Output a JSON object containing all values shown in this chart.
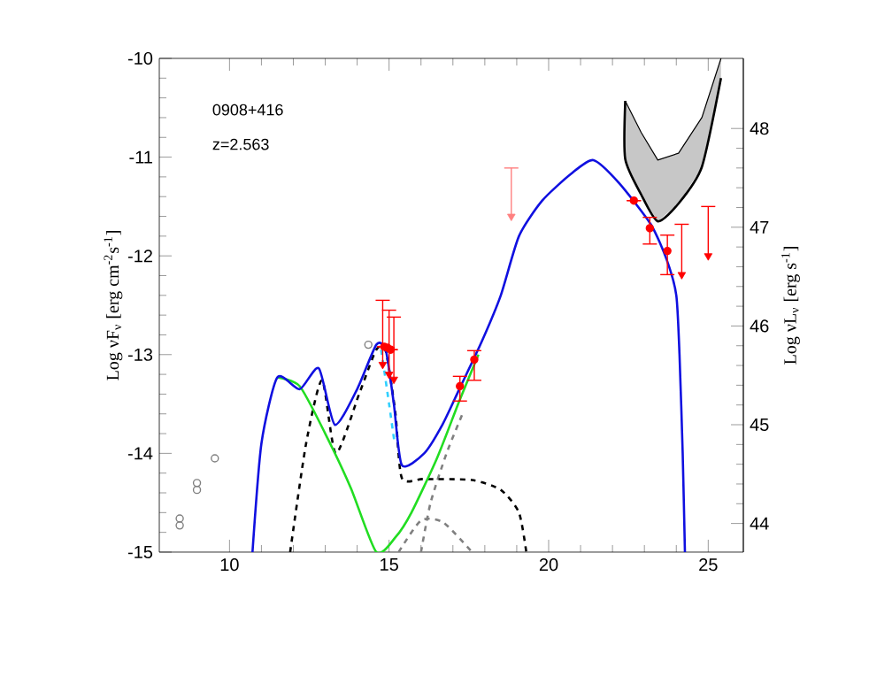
{
  "chart_data": {
    "type": "line",
    "ylabel": "Log νF$_{ν}$ [erg cm$^{-2}$s$^{-1}$]",
    "y2label": "Log νL$_{ν}$ [erg s$^{-1}$]",
    "annotations": [
      "0908+416",
      "z=2.563"
    ],
    "xlim": [
      7.8,
      26.1
    ],
    "xticks": [
      10,
      15,
      20,
      25
    ],
    "ylim": [
      -15,
      -10
    ],
    "yticks": [
      -15,
      -14,
      -13,
      -12,
      -11,
      -10
    ],
    "y2lim": [
      43.71,
      48.71
    ],
    "y2ticks": [
      44,
      45,
      46,
      47,
      48
    ],
    "series": [
      {
        "color": "#000000",
        "line_style": "solid",
        "x": [
          22.4,
          22.9,
          23.42,
          24.07,
          24.8,
          25.4
        ],
        "values": [
          -10.43,
          -10.75,
          -11.03,
          -10.96,
          -10.6,
          -10.0
        ],
        "upper": [
          -10.43,
          -10.75,
          -11.03,
          -10.96,
          -10.6,
          -10.0
        ],
        "lower": [
          -11.02,
          -11.38,
          -11.65,
          -11.47,
          -11.1,
          -10.2
        ]
      },
      {
        "color": "#000000",
        "line_style": "solid",
        "x": [
          22.4,
          22.4,
          22.9,
          23.42,
          24.07,
          24.8,
          25.4
        ],
        "values": [
          -10.43,
          -11.02,
          -11.38,
          -11.65,
          -11.47,
          -11.1,
          -10.2
        ]
      },
      {
        "color": "#808080",
        "line_style": "dashed",
        "x": [
          15.3,
          16.0,
          16.7,
          17.6
        ],
        "values": [
          -15,
          -14.68,
          -14.7,
          -15
        ]
      },
      {
        "color": "#808080",
        "line_style": "dashed",
        "x": [
          16.0,
          16.3,
          16.8,
          17.3
        ],
        "values": [
          -15,
          -14.5,
          -14.0,
          -13.6
        ]
      },
      {
        "color": "#000000",
        "line_style": "dashed",
        "x": [
          11.9,
          12.4,
          12.9,
          13.33,
          14.06,
          14.6,
          14.9,
          15.2,
          15.4,
          16.1,
          17.6,
          18.5,
          19.07,
          19.3
        ],
        "values": [
          -15,
          -13.9,
          -13.26,
          -14.0,
          -13.4,
          -12.95,
          -12.97,
          -13.6,
          -14.25,
          -14.26,
          -14.27,
          -14.37,
          -14.6,
          -15
        ]
      },
      {
        "color": "#30d0ff",
        "line_style": "dashed",
        "x": [
          14.75,
          14.83,
          15.0,
          15.17
        ],
        "values": [
          -12.95,
          -13.12,
          -13.5,
          -13.89
        ]
      },
      {
        "color": "#22dd22",
        "line_style": "solid",
        "x": [
          11.5,
          12.2,
          13.0,
          13.8,
          14.6,
          15.2,
          15.7,
          16.5,
          17.2,
          17.8
        ],
        "values": [
          -13.23,
          -13.32,
          -13.8,
          -14.35,
          -15,
          -14.85,
          -14.6,
          -14.05,
          -13.47,
          -13.0
        ]
      },
      {
        "color": "#1010e0",
        "line_style": "solid",
        "x": [
          10.72,
          11.0,
          11.5,
          12.2,
          12.8,
          13.3,
          14.0,
          14.6,
          14.9,
          15.15,
          15.4,
          16.1,
          16.67,
          17.2,
          17.9,
          18.5,
          19.07,
          19.8,
          20.7,
          21.4,
          22.2,
          23.2,
          23.7,
          24.0,
          24.1,
          24.2,
          24.27
        ],
        "values": [
          -15,
          -13.9,
          -13.23,
          -13.35,
          -13.14,
          -13.71,
          -13.35,
          -12.9,
          -12.96,
          -13.5,
          -14.12,
          -14.0,
          -13.71,
          -13.35,
          -12.87,
          -12.4,
          -11.8,
          -11.44,
          -11.17,
          -11.03,
          -11.26,
          -11.68,
          -12.04,
          -12.4,
          -13.0,
          -14.0,
          -15
        ]
      },
      {
        "type": "scatter",
        "color": "#808080",
        "marker": "circle",
        "x": [
          8.44,
          8.44,
          8.98,
          8.98,
          9.54,
          14.35
        ],
        "values": [
          -14.66,
          -14.73,
          -14.3,
          -14.37,
          -14.05,
          -12.9
        ]
      },
      {
        "type": "scatter",
        "color": "#ff0000",
        "marker": "circle",
        "x": [
          14.85,
          14.95,
          15.05,
          17.22,
          17.67,
          22.67,
          23.17,
          23.72
        ],
        "values": [
          -12.92,
          -12.93,
          -12.95,
          -13.32,
          -13.05,
          -11.44,
          -11.72,
          -11.95
        ],
        "errors": [
          null,
          null,
          null,
          [
            -13.47,
            -13.22
          ],
          [
            -13.26,
            -12.96
          ],
          null,
          [
            -11.88,
            -11.61
          ],
          [
            -12.19,
            -11.79
          ]
        ]
      },
      {
        "type": "scatter",
        "color": "#ff0000",
        "marker": "triangle",
        "x": [
          14.8,
          15.0,
          15.15,
          24.17,
          25.0
        ],
        "values": [
          -13.1,
          -13.2,
          -13.25,
          -12.19,
          -12.0
        ],
        "errors": [
          [
            -13.1,
            -12.45
          ],
          [
            -13.2,
            -12.55
          ],
          [
            -13.25,
            -12.62
          ],
          [
            -12.19,
            -11.68
          ],
          [
            -12.0,
            -11.5
          ]
        ]
      },
      {
        "type": "scatter",
        "color": "#ff8080",
        "marker": "triangle",
        "x": [
          18.83
        ],
        "values": [
          -11.6
        ],
        "errors": [
          [
            -11.6,
            -11.11
          ]
        ]
      }
    ]
  }
}
